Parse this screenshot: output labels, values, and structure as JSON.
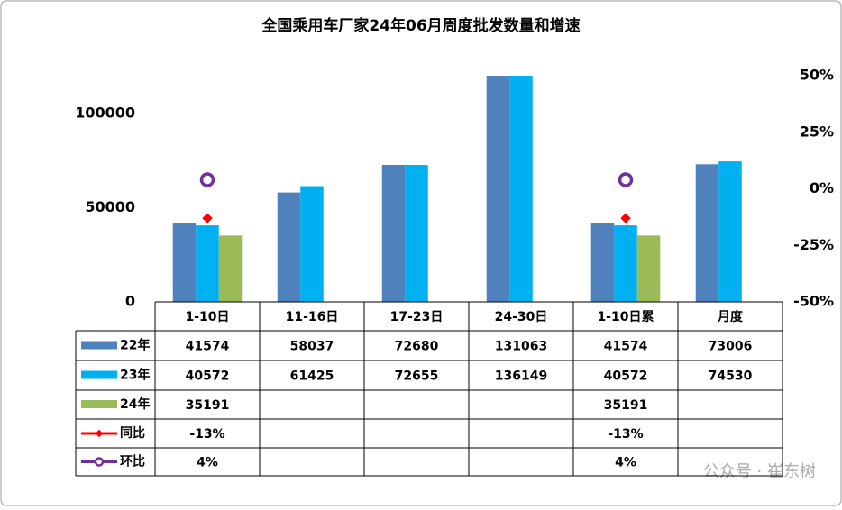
{
  "chart_data": {
    "type": "bar",
    "title": "全国乘用车厂家24年06月周度批发数量和增速",
    "categories": [
      "1-10日",
      "11-16日",
      "17-23日",
      "24-30日",
      "1-10日累",
      "月度"
    ],
    "series": [
      {
        "name": "22年",
        "type": "bar",
        "color": "#4f81bd",
        "values": [
          41574,
          58037,
          72680,
          131063,
          41574,
          73006
        ]
      },
      {
        "name": "23年",
        "type": "bar",
        "color": "#00b0f0",
        "values": [
          40572,
          61425,
          72655,
          136149,
          40572,
          74530
        ]
      },
      {
        "name": "24年",
        "type": "bar",
        "color": "#9bbb59",
        "values": [
          35191,
          null,
          null,
          null,
          35191,
          null
        ]
      },
      {
        "name": "同比",
        "type": "line",
        "marker": "diamond",
        "axis": "y2",
        "color": "#ff0000",
        "values": [
          -13,
          null,
          null,
          null,
          -13,
          null
        ],
        "value_labels": [
          "-13%",
          null,
          null,
          null,
          "-13%",
          null
        ]
      },
      {
        "name": "环比",
        "type": "line",
        "marker": "circle",
        "axis": "y2",
        "color": "#7030a0",
        "values": [
          4,
          null,
          null,
          null,
          4,
          null
        ],
        "value_labels": [
          "4%",
          null,
          null,
          null,
          "4%",
          null
        ]
      }
    ],
    "ylim": [
      0,
      120000
    ],
    "yticks": [
      0,
      50000,
      100000
    ],
    "y2lim": [
      -50,
      50
    ],
    "y2ticks": [
      {
        "value": -50,
        "label": "-50%"
      },
      {
        "value": -25,
        "label": "-25%"
      },
      {
        "value": 0,
        "label": "0%"
      },
      {
        "value": 25,
        "label": "25%"
      },
      {
        "value": 50,
        "label": "50%"
      }
    ],
    "watermark": "公众号 · 崔东树"
  }
}
